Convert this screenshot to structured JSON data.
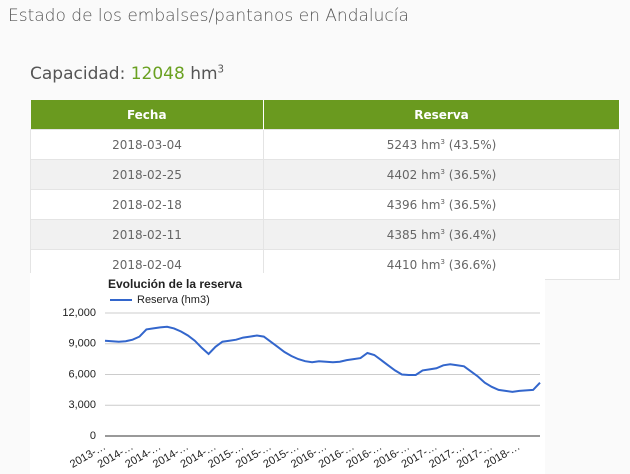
{
  "header": {
    "title": "Estado de los embalses/pantanos en Andalucía"
  },
  "capacity": {
    "label": "Capacidad:",
    "value": 12048,
    "unit": "hm",
    "unit_sup": "3"
  },
  "table": {
    "columns": [
      "Fecha",
      "Reserva"
    ],
    "rows": [
      {
        "date": "2018-03-04",
        "value": 5243,
        "unit": "hm",
        "unit_sup": "3",
        "percent": "(43.5%)"
      },
      {
        "date": "2018-02-25",
        "value": 4402,
        "unit": "hm",
        "unit_sup": "3",
        "percent": "(36.5%)"
      },
      {
        "date": "2018-02-18",
        "value": 4396,
        "unit": "hm",
        "unit_sup": "3",
        "percent": "(36.5%)"
      },
      {
        "date": "2018-02-11",
        "value": 4385,
        "unit": "hm",
        "unit_sup": "3",
        "percent": "(36.4%)"
      },
      {
        "date": "2018-02-04",
        "value": 4410,
        "unit": "hm",
        "unit_sup": "3",
        "percent": "(36.6%)"
      }
    ]
  },
  "chart_data": {
    "type": "line",
    "title": "Evolución de la reserva",
    "categories": [
      "2013-…",
      null,
      null,
      null,
      "2014-…",
      null,
      null,
      null,
      "2014-…",
      null,
      null,
      null,
      "2014-…",
      null,
      null,
      null,
      "2014-…",
      null,
      null,
      null,
      "2015-…",
      null,
      null,
      null,
      "2015-…",
      null,
      null,
      null,
      "2015-…",
      null,
      null,
      null,
      "2016-…",
      null,
      null,
      null,
      "2016-…",
      null,
      null,
      null,
      "2016-…",
      null,
      null,
      null,
      "2016-…",
      null,
      null,
      null,
      "2017-…",
      null,
      null,
      null,
      "2017-…",
      null,
      null,
      null,
      "2017-…",
      null,
      null,
      null,
      "2018-…",
      null,
      null,
      null
    ],
    "series": [
      {
        "name": "Reserva (hm3)",
        "color": "#3366cc",
        "values": [
          9300,
          9250,
          9200,
          9250,
          9400,
          9700,
          10400,
          10500,
          10600,
          10650,
          10500,
          10200,
          9800,
          9300,
          8600,
          8000,
          8700,
          9200,
          9300,
          9400,
          9600,
          9700,
          9800,
          9700,
          9200,
          8700,
          8200,
          7800,
          7500,
          7300,
          7200,
          7300,
          7250,
          7200,
          7250,
          7400,
          7500,
          7600,
          8100,
          7900,
          7400,
          6900,
          6400,
          6000,
          5950,
          5950,
          6400,
          6500,
          6600,
          6900,
          7000,
          6900,
          6800,
          6300,
          5800,
          5200,
          4800,
          4500,
          4400,
          4300,
          4400,
          4450,
          4500,
          5200
        ]
      }
    ],
    "ylim": [
      0,
      12000
    ],
    "yticks": [
      0,
      {
        "value": 3000,
        "label": "3,000"
      },
      {
        "value": 6000,
        "label": "6,000"
      },
      {
        "value": 9000,
        "label": "9,000"
      },
      {
        "value": 12000,
        "label": "12,000"
      }
    ],
    "grid": true,
    "legend": "top"
  }
}
